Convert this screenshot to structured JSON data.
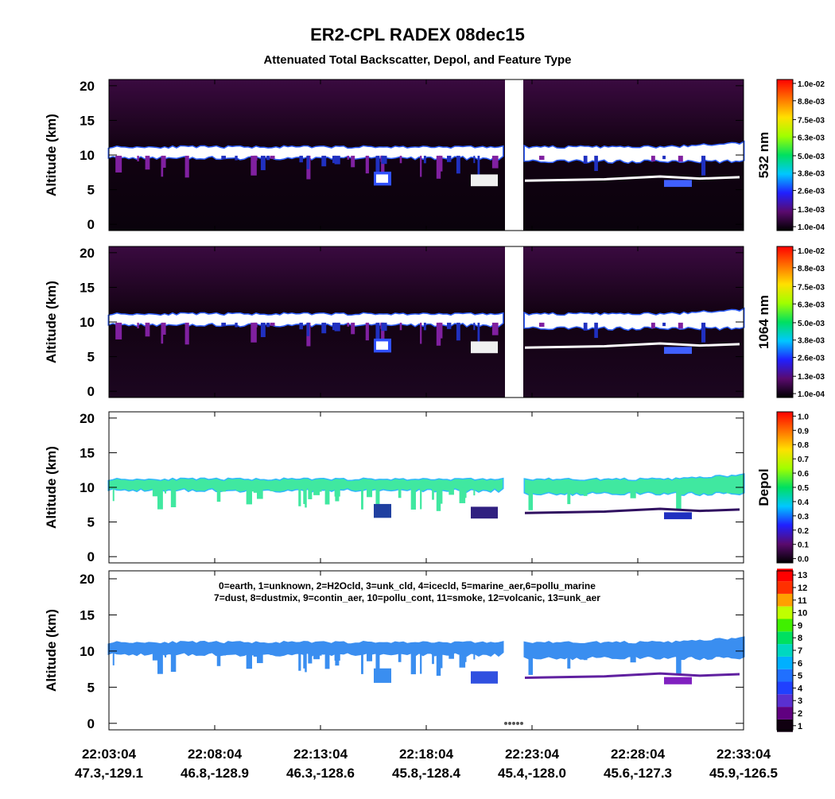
{
  "chart_data": {
    "type": "heatmap",
    "title": "ER2-CPL RADEX 08dec15",
    "subtitle": "Attenuated Total Backscatter, Depol, and Feature Type",
    "xticks": [
      "22:03:04",
      "22:08:04",
      "22:13:04",
      "22:18:04",
      "22:23:04",
      "22:28:04",
      "22:33:04"
    ],
    "xtick_positions": [
      "47.3,-129.1",
      "46.8,-128.9",
      "46.3,-128.6",
      "45.8,-128.4",
      "45.4,-128.0",
      "45.6,-127.3",
      "45.9,-126.5"
    ],
    "panels": [
      {
        "ylabel": "Altitude (km)",
        "ylim": [
          -0.9,
          20.9
        ],
        "yticks": [
          0,
          5,
          10,
          15,
          20
        ],
        "background": "#000000",
        "colorbar": {
          "label": "532 nm",
          "lim": [
            -0.00017,
            0.01027
          ],
          "colormap": [
            "#000000",
            "#5a0a6e",
            "#2020ff",
            "#00c8ff",
            "#00e060",
            "#a0ff00",
            "#ffe000",
            "#ff7000",
            "#ff0000"
          ],
          "ticks": [
            {
              "value": 0.0001,
              "label": "1.0e-04"
            },
            {
              "value": 0.0013,
              "label": "1.3e-03"
            },
            {
              "value": 0.0026,
              "label": "2.6e-03"
            },
            {
              "value": 0.0038,
              "label": "3.8e-03"
            },
            {
              "value": 0.005,
              "label": "5.0e-03"
            },
            {
              "value": 0.0063,
              "label": "6.3e-03"
            },
            {
              "value": 0.0075,
              "label": "7.5e-03"
            },
            {
              "value": 0.0088,
              "label": "8.8e-03"
            },
            {
              "value": 0.01,
              "label": "1.0e-02"
            }
          ]
        }
      },
      {
        "ylabel": "Altitude (km)",
        "ylim": [
          -0.9,
          20.9
        ],
        "yticks": [
          0,
          5,
          10,
          15,
          20
        ],
        "background": "#000000",
        "colorbar": {
          "label": "1064 nm",
          "lim": [
            -0.00017,
            0.01027
          ],
          "colormap": [
            "#000000",
            "#5a0a6e",
            "#2020ff",
            "#00c8ff",
            "#00e060",
            "#a0ff00",
            "#ffe000",
            "#ff7000",
            "#ff0000"
          ],
          "ticks": [
            {
              "value": 0.0001,
              "label": "1.0e-04"
            },
            {
              "value": 0.0013,
              "label": "1.3e-03"
            },
            {
              "value": 0.0026,
              "label": "2.6e-03"
            },
            {
              "value": 0.0038,
              "label": "3.8e-03"
            },
            {
              "value": 0.005,
              "label": "5.0e-03"
            },
            {
              "value": 0.0063,
              "label": "6.3e-03"
            },
            {
              "value": 0.0075,
              "label": "7.5e-03"
            },
            {
              "value": 0.0088,
              "label": "8.8e-03"
            },
            {
              "value": 0.01,
              "label": "1.0e-02"
            }
          ]
        }
      },
      {
        "ylabel": "Altitude (km)",
        "ylim": [
          -0.9,
          20.9
        ],
        "yticks": [
          0,
          5,
          10,
          15,
          20
        ],
        "background": "#ffffff",
        "colorbar": {
          "label": "Depol",
          "lim": [
            -0.03,
            1.03
          ],
          "colormap": [
            "#000000",
            "#5a0a6e",
            "#2020ff",
            "#00c8ff",
            "#00e060",
            "#a0ff00",
            "#ffe000",
            "#ff7000",
            "#ff0000"
          ],
          "ticks": [
            {
              "value": 0,
              "label": "0.0"
            },
            0.1,
            0.2,
            0.3,
            0.4,
            0.5,
            0.6,
            0.7,
            0.8,
            0.9,
            {
              "value": 1,
              "label": "1.0"
            }
          ]
        }
      },
      {
        "ylabel": "Altitude (km)",
        "ylim": [
          -0.9,
          21.1
        ],
        "yticks": [
          0,
          5,
          10,
          15,
          20
        ],
        "background": "#ffffff",
        "legend_text": [
          "0=earth, 1=unknown, 2=H2Ocld, 3=unk_cld, 4=icecld, 5=marine_aer,6=pollu_marine",
          "7=dust, 8=dustmix, 9=contin_aer, 10=pollu_cont, 11=smoke, 12=volcanic, 13=unk_aer"
        ],
        "colorbar": {
          "lim": [
            0.67,
            13.33
          ],
          "colormap": [
            "#100010",
            "#600080",
            "#5a30d0",
            "#2040ff",
            "#2070ff",
            "#00b0ff",
            "#00d8c0",
            "#00e060",
            "#40f000",
            "#c0ff00",
            "#ffa000",
            "#ff3000",
            "#ff0000"
          ],
          "ticks": [
            1,
            2,
            3,
            4,
            5,
            6,
            7,
            8,
            9,
            10,
            11,
            12,
            13
          ]
        }
      }
    ]
  }
}
